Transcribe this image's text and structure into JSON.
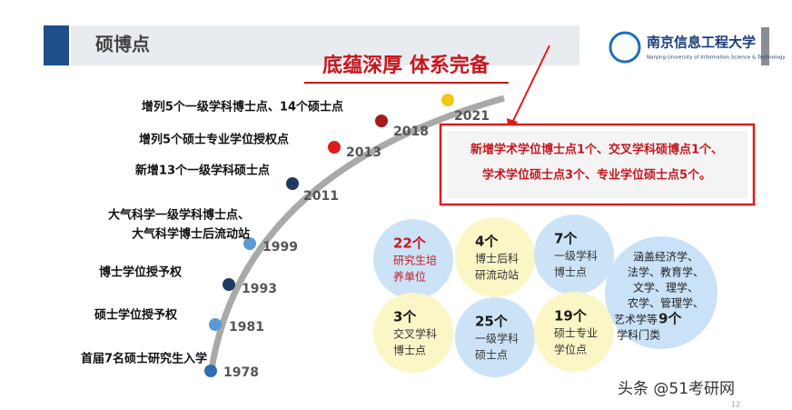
{
  "header": {
    "title": "硕博点"
  },
  "logo": {
    "name": "南京信息工程大学",
    "english": "Nanjing University of Information Science & Technology"
  },
  "headline": "底蕴深厚 体系完备",
  "timeline": [
    {
      "year": "1978",
      "event": [
        "首届7名硕士研究生入学"
      ]
    },
    {
      "year": "1981",
      "event": [
        "硕士学位授予权"
      ]
    },
    {
      "year": "1993",
      "event": [
        "博士学位授予权"
      ]
    },
    {
      "year": "1999",
      "event": [
        "大气科学一级学科博士点、",
        "大气科学博士后流动站"
      ]
    },
    {
      "year": "2011",
      "event": [
        "新增13个一级学科硕士点"
      ]
    },
    {
      "year": "2013",
      "event": [
        "增列5个硕士专业学位授权点"
      ]
    },
    {
      "year": "2018",
      "event": [
        "增列5个一级学科博士点、14个硕士点"
      ]
    },
    {
      "year": "2021",
      "event": []
    }
  ],
  "highlight": {
    "lines": [
      "新增学术学位博士点1个、交叉学科硕博点1个、",
      "学术学位硕士点3个、专业学位硕士点5个。"
    ]
  },
  "stats": [
    {
      "count": "22个",
      "label": [
        "研究生培",
        "养单位"
      ]
    },
    {
      "count": "4个",
      "label": [
        "博士后科",
        "研流动站"
      ]
    },
    {
      "count": "7个",
      "label": [
        "一级学科",
        "博士点"
      ]
    },
    {
      "count": "3个",
      "label": [
        "交叉学科",
        "博士点"
      ]
    },
    {
      "count": "25个",
      "label": [
        "一级学科",
        "硕士点"
      ]
    },
    {
      "count": "19个",
      "label": [
        "硕士专业",
        "学位点"
      ]
    }
  ],
  "disciplines": {
    "lines": [
      "涵盖经济学、",
      "法学、教育学、",
      "文学、理学、",
      "农学、管理学、"
    ],
    "prefix": "艺术学等",
    "count": "9个",
    "suffix": "学科门类"
  },
  "watermark": "头条 @51考研网",
  "page_number": "12"
}
